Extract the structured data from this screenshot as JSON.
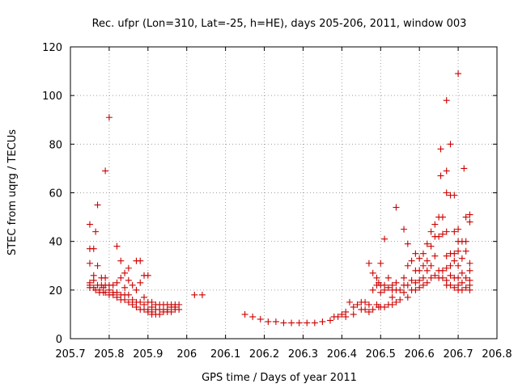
{
  "chart_data": {
    "type": "scatter",
    "title": "Rec. ufpr (Lon=310, Lat=-25, h=HE), days 205-206, 2011, window 003",
    "xlabel": "GPS time / Days of year 2011",
    "ylabel": "STEC from uqrg / TECUs",
    "xlim": [
      205.7,
      206.8
    ],
    "ylim": [
      0,
      120
    ],
    "xticks": [
      205.7,
      205.8,
      205.9,
      206,
      206.1,
      206.2,
      206.3,
      206.4,
      206.5,
      206.6,
      206.7,
      206.8
    ],
    "xtick_labels": [
      "205.7",
      "205.8",
      "205.9",
      "206",
      "206.1",
      "206.2",
      "206.3",
      "206.4",
      "206.5",
      "206.6",
      "206.7",
      "206.8"
    ],
    "yticks": [
      0,
      20,
      40,
      60,
      80,
      100,
      120
    ],
    "ytick_labels": [
      "0",
      "20",
      "40",
      "60",
      "80",
      "100",
      "120"
    ],
    "grid": true,
    "marker": "plus",
    "color": "#cc0000",
    "series": [
      {
        "name": "stec",
        "points": [
          [
            205.75,
            47
          ],
          [
            205.75,
            37
          ],
          [
            205.75,
            31
          ],
          [
            205.75,
            23
          ],
          [
            205.75,
            22
          ],
          [
            205.75,
            21
          ],
          [
            205.76,
            37
          ],
          [
            205.76,
            26
          ],
          [
            205.76,
            24
          ],
          [
            205.76,
            21
          ],
          [
            205.765,
            44
          ],
          [
            205.765,
            20
          ],
          [
            205.77,
            55
          ],
          [
            205.77,
            30
          ],
          [
            205.77,
            22
          ],
          [
            205.775,
            20
          ],
          [
            205.775,
            19
          ],
          [
            205.78,
            25
          ],
          [
            205.78,
            22
          ],
          [
            205.785,
            21
          ],
          [
            205.785,
            19
          ],
          [
            205.79,
            69
          ],
          [
            205.79,
            25
          ],
          [
            205.79,
            22
          ],
          [
            205.79,
            19
          ],
          [
            205.8,
            91
          ],
          [
            205.8,
            22
          ],
          [
            205.8,
            20
          ],
          [
            205.8,
            18
          ],
          [
            205.81,
            22
          ],
          [
            205.81,
            19
          ],
          [
            205.81,
            18
          ],
          [
            205.82,
            38
          ],
          [
            205.82,
            23
          ],
          [
            205.82,
            19
          ],
          [
            205.82,
            17
          ],
          [
            205.83,
            32
          ],
          [
            205.83,
            25
          ],
          [
            205.83,
            18
          ],
          [
            205.83,
            16
          ],
          [
            205.84,
            27
          ],
          [
            205.84,
            21
          ],
          [
            205.84,
            18
          ],
          [
            205.84,
            16
          ],
          [
            205.85,
            29
          ],
          [
            205.85,
            24
          ],
          [
            205.85,
            18
          ],
          [
            205.85,
            15
          ],
          [
            205.86,
            22
          ],
          [
            205.86,
            16
          ],
          [
            205.86,
            14
          ],
          [
            205.87,
            32
          ],
          [
            205.87,
            20
          ],
          [
            205.87,
            15
          ],
          [
            205.87,
            13
          ],
          [
            205.88,
            32
          ],
          [
            205.88,
            23
          ],
          [
            205.88,
            15
          ],
          [
            205.88,
            12
          ],
          [
            205.89,
            26
          ],
          [
            205.89,
            17
          ],
          [
            205.89,
            14
          ],
          [
            205.89,
            12
          ],
          [
            205.9,
            26
          ],
          [
            205.9,
            15
          ],
          [
            205.9,
            12
          ],
          [
            205.9,
            11
          ],
          [
            205.91,
            15
          ],
          [
            205.91,
            13
          ],
          [
            205.91,
            11
          ],
          [
            205.91,
            10
          ],
          [
            205.92,
            14
          ],
          [
            205.92,
            12
          ],
          [
            205.92,
            10
          ],
          [
            205.93,
            14
          ],
          [
            205.93,
            12
          ],
          [
            205.93,
            10
          ],
          [
            205.94,
            14
          ],
          [
            205.94,
            12
          ],
          [
            205.94,
            11
          ],
          [
            205.95,
            14
          ],
          [
            205.95,
            12
          ],
          [
            205.95,
            11
          ],
          [
            205.96,
            14
          ],
          [
            205.96,
            13
          ],
          [
            205.96,
            11
          ],
          [
            205.97,
            14
          ],
          [
            205.97,
            13
          ],
          [
            205.97,
            12
          ],
          [
            205.98,
            14
          ],
          [
            205.98,
            12
          ],
          [
            206.02,
            18
          ],
          [
            206.04,
            18
          ],
          [
            206.15,
            10
          ],
          [
            206.17,
            9
          ],
          [
            206.19,
            8
          ],
          [
            206.21,
            7
          ],
          [
            206.23,
            7
          ],
          [
            206.25,
            6.5
          ],
          [
            206.27,
            6.5
          ],
          [
            206.29,
            6.5
          ],
          [
            206.31,
            6.5
          ],
          [
            206.33,
            6.5
          ],
          [
            206.35,
            7
          ],
          [
            206.37,
            7.5
          ],
          [
            206.38,
            9
          ],
          [
            206.39,
            9
          ],
          [
            206.4,
            10
          ],
          [
            206.41,
            11
          ],
          [
            206.41,
            9
          ],
          [
            206.42,
            15
          ],
          [
            206.43,
            13
          ],
          [
            206.43,
            10
          ],
          [
            206.44,
            14
          ],
          [
            206.45,
            15
          ],
          [
            206.45,
            12
          ],
          [
            206.46,
            15
          ],
          [
            206.46,
            12
          ],
          [
            206.47,
            31
          ],
          [
            206.47,
            14
          ],
          [
            206.47,
            11
          ],
          [
            206.48,
            27
          ],
          [
            206.48,
            20
          ],
          [
            206.48,
            12
          ],
          [
            206.49,
            25
          ],
          [
            206.49,
            22
          ],
          [
            206.49,
            14
          ],
          [
            206.495,
            23
          ],
          [
            206.495,
            13
          ],
          [
            206.5,
            31
          ],
          [
            206.5,
            22
          ],
          [
            206.5,
            19
          ],
          [
            206.5,
            13
          ],
          [
            206.51,
            41
          ],
          [
            206.51,
            22
          ],
          [
            206.51,
            20
          ],
          [
            206.51,
            13
          ],
          [
            206.52,
            25
          ],
          [
            206.52,
            21
          ],
          [
            206.52,
            14
          ],
          [
            206.53,
            22
          ],
          [
            206.53,
            20
          ],
          [
            206.53,
            17
          ],
          [
            206.53,
            14
          ],
          [
            206.54,
            54
          ],
          [
            206.54,
            23
          ],
          [
            206.54,
            20
          ],
          [
            206.54,
            15
          ],
          [
            206.55,
            20
          ],
          [
            206.55,
            16
          ],
          [
            206.56,
            45
          ],
          [
            206.56,
            25
          ],
          [
            206.56,
            22
          ],
          [
            206.56,
            19
          ],
          [
            206.57,
            39
          ],
          [
            206.57,
            30
          ],
          [
            206.57,
            22
          ],
          [
            206.57,
            17
          ],
          [
            206.58,
            32
          ],
          [
            206.58,
            24
          ],
          [
            206.58,
            20
          ],
          [
            206.59,
            35
          ],
          [
            206.59,
            28
          ],
          [
            206.59,
            23
          ],
          [
            206.59,
            20
          ],
          [
            206.6,
            33
          ],
          [
            206.6,
            28
          ],
          [
            206.6,
            24
          ],
          [
            206.6,
            21
          ],
          [
            206.61,
            35
          ],
          [
            206.61,
            30
          ],
          [
            206.61,
            25
          ],
          [
            206.61,
            22
          ],
          [
            206.62,
            39
          ],
          [
            206.62,
            32
          ],
          [
            206.62,
            28
          ],
          [
            206.62,
            23
          ],
          [
            206.63,
            44
          ],
          [
            206.63,
            38
          ],
          [
            206.63,
            30
          ],
          [
            206.63,
            25
          ],
          [
            206.64,
            47
          ],
          [
            206.64,
            42
          ],
          [
            206.64,
            34
          ],
          [
            206.64,
            26
          ],
          [
            206.65,
            50
          ],
          [
            206.65,
            42
          ],
          [
            206.65,
            28
          ],
          [
            206.65,
            25
          ],
          [
            206.655,
            78
          ],
          [
            206.655,
            67
          ],
          [
            206.66,
            50
          ],
          [
            206.66,
            43
          ],
          [
            206.66,
            28
          ],
          [
            206.66,
            25
          ],
          [
            206.67,
            98
          ],
          [
            206.67,
            69
          ],
          [
            206.67,
            60
          ],
          [
            206.67,
            44
          ],
          [
            206.67,
            34
          ],
          [
            206.67,
            29
          ],
          [
            206.67,
            24
          ],
          [
            206.67,
            22
          ],
          [
            206.68,
            80
          ],
          [
            206.68,
            59
          ],
          [
            206.68,
            35
          ],
          [
            206.68,
            30
          ],
          [
            206.68,
            26
          ],
          [
            206.68,
            22
          ],
          [
            206.69,
            59
          ],
          [
            206.69,
            44
          ],
          [
            206.69,
            35
          ],
          [
            206.69,
            32
          ],
          [
            206.69,
            25
          ],
          [
            206.69,
            21
          ],
          [
            206.7,
            109
          ],
          [
            206.7,
            45
          ],
          [
            206.7,
            40
          ],
          [
            206.7,
            36
          ],
          [
            206.7,
            30
          ],
          [
            206.7,
            25
          ],
          [
            206.7,
            22
          ],
          [
            206.7,
            20
          ],
          [
            206.71,
            40
          ],
          [
            206.71,
            33
          ],
          [
            206.71,
            27
          ],
          [
            206.71,
            23
          ],
          [
            206.71,
            20
          ],
          [
            206.715,
            70
          ],
          [
            206.72,
            50
          ],
          [
            206.72,
            40
          ],
          [
            206.72,
            36
          ],
          [
            206.72,
            25
          ],
          [
            206.72,
            21
          ],
          [
            206.73,
            51
          ],
          [
            206.73,
            48
          ],
          [
            206.73,
            31
          ],
          [
            206.73,
            28
          ],
          [
            206.73,
            24
          ],
          [
            206.73,
            22
          ],
          [
            206.73,
            20
          ]
        ]
      }
    ]
  }
}
